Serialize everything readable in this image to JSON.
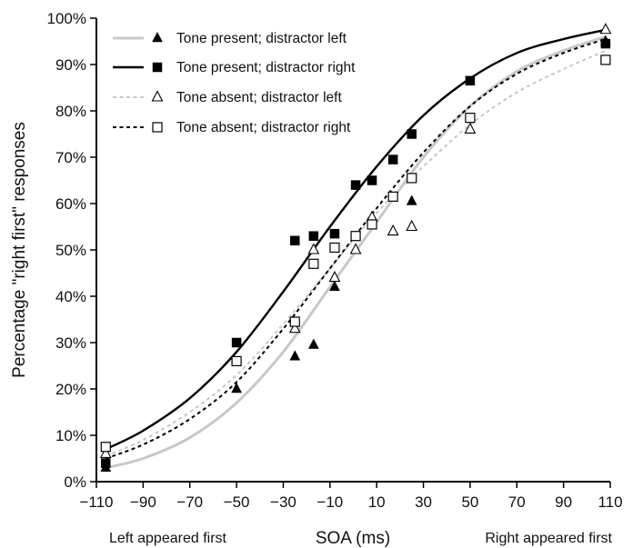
{
  "chart_data": {
    "type": "scatter",
    "title": "",
    "xlabel": "SOA (ms)",
    "ylabel": "Percentage \"right first\" responses",
    "xlim": [
      -110,
      110
    ],
    "ylim": [
      0,
      100
    ],
    "x_ticks": [
      -110,
      -90,
      -70,
      -50,
      -30,
      -10,
      10,
      30,
      50,
      70,
      90,
      110
    ],
    "x_tick_labels": [
      "−110",
      "−90",
      "−70",
      "−50",
      "−30",
      "−10",
      "10",
      "30",
      "50",
      "70",
      "90",
      "110"
    ],
    "y_ticks": [
      0,
      10,
      20,
      30,
      40,
      50,
      60,
      70,
      80,
      90,
      100
    ],
    "y_tick_labels": [
      "0%",
      "10%",
      "20%",
      "30%",
      "40%",
      "50%",
      "60%",
      "70%",
      "80%",
      "90%",
      "100%"
    ],
    "axis_notes": {
      "left": "Left appeared first",
      "right": "Right appeared first"
    },
    "legend_position": "top-left",
    "grid": false,
    "series": [
      {
        "name": "Tone present; distractor left",
        "marker": "filled-triangle",
        "line_style": "solid",
        "line_color": "#c8c8c8",
        "points": [
          {
            "x": -106,
            "y": 3
          },
          {
            "x": -50,
            "y": 20
          },
          {
            "x": -25,
            "y": 27
          },
          {
            "x": -17,
            "y": 29.5
          },
          {
            "x": -8,
            "y": 42
          },
          {
            "x": 25,
            "y": 60.5
          },
          {
            "x": 108,
            "y": 95
          }
        ],
        "curve": [
          {
            "x": -106,
            "y": 3
          },
          {
            "x": -90,
            "y": 5
          },
          {
            "x": -70,
            "y": 9.5
          },
          {
            "x": -50,
            "y": 17
          },
          {
            "x": -30,
            "y": 28
          },
          {
            "x": -10,
            "y": 42
          },
          {
            "x": 10,
            "y": 56
          },
          {
            "x": 30,
            "y": 70
          },
          {
            "x": 50,
            "y": 81
          },
          {
            "x": 70,
            "y": 88.5
          },
          {
            "x": 90,
            "y": 93
          },
          {
            "x": 108,
            "y": 96
          }
        ]
      },
      {
        "name": "Tone present; distractor right",
        "marker": "filled-square",
        "line_style": "solid",
        "line_color": "#000000",
        "points": [
          {
            "x": -106,
            "y": 4
          },
          {
            "x": -50,
            "y": 30
          },
          {
            "x": -25,
            "y": 52
          },
          {
            "x": -17,
            "y": 53
          },
          {
            "x": -8,
            "y": 53.5
          },
          {
            "x": 1,
            "y": 64
          },
          {
            "x": 8,
            "y": 65
          },
          {
            "x": 17,
            "y": 69.5
          },
          {
            "x": 25,
            "y": 75
          },
          {
            "x": 50,
            "y": 86.5
          },
          {
            "x": 108,
            "y": 94.5
          }
        ],
        "curve": [
          {
            "x": -106,
            "y": 7
          },
          {
            "x": -90,
            "y": 11
          },
          {
            "x": -70,
            "y": 18
          },
          {
            "x": -50,
            "y": 28
          },
          {
            "x": -30,
            "y": 41
          },
          {
            "x": -10,
            "y": 55
          },
          {
            "x": 10,
            "y": 68
          },
          {
            "x": 30,
            "y": 79
          },
          {
            "x": 50,
            "y": 87
          },
          {
            "x": 70,
            "y": 92.5
          },
          {
            "x": 90,
            "y": 95.5
          },
          {
            "x": 108,
            "y": 97.5
          }
        ]
      },
      {
        "name": "Tone absent; distractor left",
        "marker": "open-triangle",
        "line_style": "dashed",
        "line_color": "#c8c8c8",
        "points": [
          {
            "x": -106,
            "y": 6
          },
          {
            "x": -25,
            "y": 33
          },
          {
            "x": -17,
            "y": 50
          },
          {
            "x": -8,
            "y": 44
          },
          {
            "x": 1,
            "y": 50
          },
          {
            "x": 8,
            "y": 57
          },
          {
            "x": 17,
            "y": 54
          },
          {
            "x": 25,
            "y": 55
          },
          {
            "x": 50,
            "y": 76
          },
          {
            "x": 108,
            "y": 97.5
          }
        ],
        "curve": [
          {
            "x": -106,
            "y": 5.5
          },
          {
            "x": -90,
            "y": 9
          },
          {
            "x": -70,
            "y": 15
          },
          {
            "x": -50,
            "y": 23
          },
          {
            "x": -30,
            "y": 34
          },
          {
            "x": -10,
            "y": 46
          },
          {
            "x": 10,
            "y": 58
          },
          {
            "x": 30,
            "y": 68
          },
          {
            "x": 50,
            "y": 77
          },
          {
            "x": 70,
            "y": 84
          },
          {
            "x": 90,
            "y": 89
          },
          {
            "x": 108,
            "y": 93
          }
        ]
      },
      {
        "name": "Tone absent; distractor right",
        "marker": "open-square",
        "line_style": "dashed",
        "line_color": "#000000",
        "points": [
          {
            "x": -106,
            "y": 7.5
          },
          {
            "x": -50,
            "y": 26
          },
          {
            "x": -25,
            "y": 34.5
          },
          {
            "x": -17,
            "y": 47
          },
          {
            "x": -8,
            "y": 50.5
          },
          {
            "x": 1,
            "y": 53
          },
          {
            "x": 8,
            "y": 55.5
          },
          {
            "x": 17,
            "y": 61.5
          },
          {
            "x": 25,
            "y": 65.5
          },
          {
            "x": 50,
            "y": 78.5
          },
          {
            "x": 108,
            "y": 91
          }
        ],
        "curve": [
          {
            "x": -106,
            "y": 5
          },
          {
            "x": -90,
            "y": 8
          },
          {
            "x": -70,
            "y": 13.5
          },
          {
            "x": -50,
            "y": 21.5
          },
          {
            "x": -30,
            "y": 33
          },
          {
            "x": -10,
            "y": 46
          },
          {
            "x": 10,
            "y": 59
          },
          {
            "x": 30,
            "y": 71
          },
          {
            "x": 50,
            "y": 81
          },
          {
            "x": 70,
            "y": 88
          },
          {
            "x": 90,
            "y": 92.5
          },
          {
            "x": 108,
            "y": 95.5
          }
        ]
      }
    ]
  }
}
